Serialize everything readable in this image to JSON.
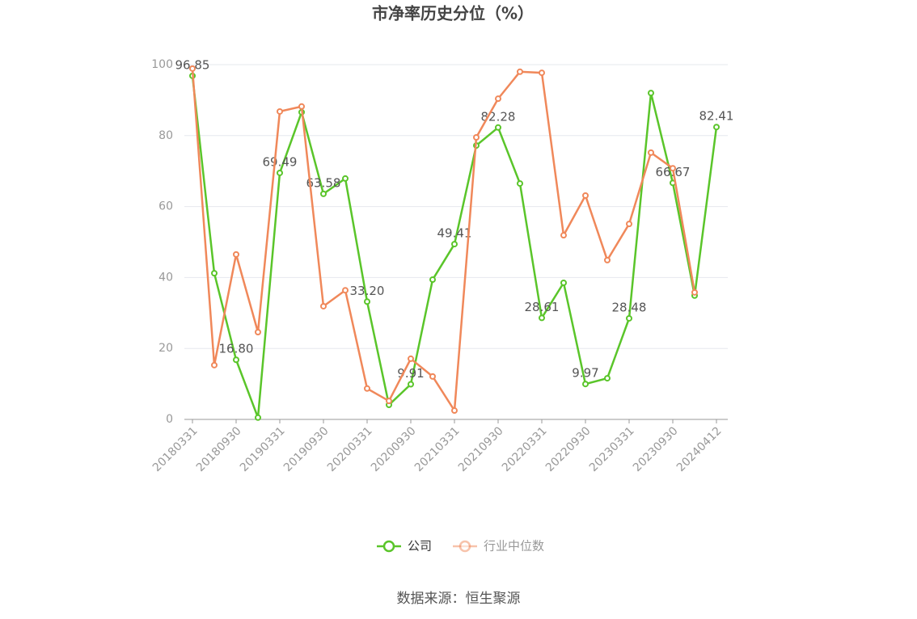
{
  "chart_data": {
    "type": "line",
    "title": "市净率历史分位（%）",
    "categories": [
      "20180331",
      null,
      "20180930",
      null,
      "20190331",
      null,
      "20190930",
      null,
      "20200331",
      null,
      "20200930",
      null,
      "20210331",
      null,
      "20210930",
      null,
      "20220331",
      null,
      "20220930",
      null,
      "20230331",
      null,
      "20230930",
      null,
      "20240412"
    ],
    "series": [
      {
        "name": "公司",
        "color": "#5ac52a",
        "values": [
          96.85,
          41.2,
          16.8,
          0.5,
          69.49,
          86.6,
          63.58,
          67.9,
          33.2,
          4.1,
          9.91,
          39.4,
          49.41,
          77.2,
          82.28,
          66.5,
          28.61,
          38.5,
          9.97,
          11.6,
          28.48,
          92.0,
          66.67,
          34.9,
          82.41
        ],
        "value_labels": [
          "96.85",
          null,
          "16.80",
          null,
          "69.49",
          null,
          "63.58",
          null,
          "33.20",
          null,
          "9.91",
          null,
          "49.41",
          null,
          "82.28",
          null,
          "28.61",
          null,
          "9.97",
          null,
          "28.48",
          null,
          "66.67",
          null,
          "82.41"
        ]
      },
      {
        "name": "行业中位数",
        "color": "#f0885a",
        "values": [
          98.9,
          15.3,
          46.5,
          24.6,
          86.8,
          88.2,
          31.9,
          36.4,
          8.7,
          5.2,
          17.1,
          12.1,
          2.5,
          79.5,
          90.4,
          98.0,
          97.7,
          51.9,
          63.1,
          44.9,
          55.1,
          75.2,
          70.8,
          35.8,
          null
        ]
      }
    ],
    "ylim": [
      0,
      100
    ],
    "yticks": [
      0,
      20,
      40,
      60,
      80,
      100
    ],
    "grid": true,
    "source": "数据来源：恒生聚源"
  }
}
